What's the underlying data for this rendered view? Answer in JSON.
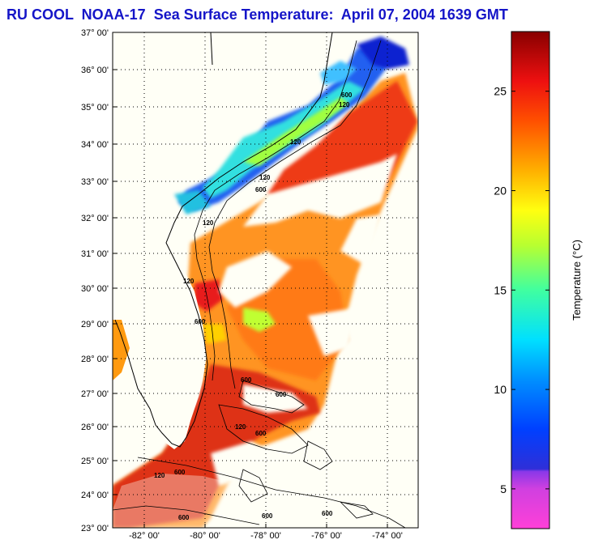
{
  "title": "RU COOL  NOAA-17  Sea Surface Temperature:  April 07, 2004 1639 GMT",
  "map": {
    "lat_labels": [
      "37° 00'",
      "36° 00'",
      "35° 00'",
      "34° 00'",
      "33° 00'",
      "32° 00'",
      "31° 00'",
      "30° 00'",
      "29° 00'",
      "28° 00'",
      "27° 00'",
      "26° 00'",
      "25° 00'",
      "24° 00'",
      "23° 00'"
    ],
    "lon_labels": [
      "-82° 00'",
      "-80° 00'",
      "-78° 00'",
      "-76° 00'",
      "-74° 00'"
    ],
    "contour_labels": [
      "120",
      "600",
      "120",
      "600",
      "120",
      "120",
      "600",
      "120",
      "600",
      "600",
      "120",
      "600",
      "120",
      "600",
      "600",
      "600",
      "600"
    ],
    "colors": {
      "land": "#fffff6",
      "cold": "#1a30e8",
      "mid": "#ff9a1a",
      "warm": "#e82a18"
    }
  },
  "colorbar": {
    "ticks": [
      "25",
      "20",
      "15",
      "10",
      "5"
    ],
    "label": "Temperature (°C)",
    "min": 3,
    "max": 28,
    "tick_values": [
      25,
      20,
      15,
      10,
      5
    ]
  }
}
